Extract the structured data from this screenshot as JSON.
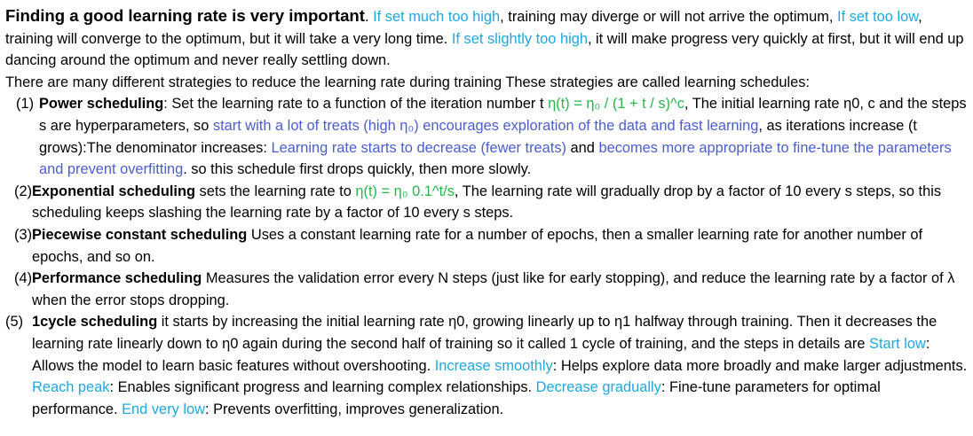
{
  "intro": {
    "title": "Finding a good learning rate is very important",
    "title_end": ". ",
    "high_label": "If set much too high",
    "high_text": ", training may diverge or will not arrive the optimum, ",
    "low_label": "If set too low",
    "low_text": ", training will converge to the optimum, but it will take a very long time. ",
    "slight_label": "If set slightly too high",
    "slight_text": ", it will make progress very quickly at first, but it will end up dancing around the optimum and never really settling down."
  },
  "strategies_line": "There are many different strategies to reduce the learning rate during training These strategies are called learning schedules:",
  "items": [
    {
      "num": "(1)",
      "name": "Power scheduling",
      "t1": ": Set the learning rate to a function of the iteration number t  ",
      "formula": "η(t) = η₀ / (1 + t / s)^c",
      "t2": ", The initial learning rate η0, c and the steps s are hyperparameters, so ",
      "b1": "start with a lot of treats (high η₀) encourages exploration of the data and fast learning",
      "t3": ", as iterations increase (t grows):The denominator increases: ",
      "b2": "Learning rate starts to decrease (fewer treats)",
      "t4": " and ",
      "b3": "becomes more appropriate to fine-tune the parameters and prevent overfitting",
      "t5": ". so this schedule first drops quickly, then more slowly."
    },
    {
      "num": "(2)",
      "name": "Exponential scheduling",
      "t1": " sets the learning rate to ",
      "formula": "η(t) = η₀ 0.1^t/s",
      "t2": ", The learning rate will gradually drop by a factor of 10 every s steps, so this scheduling keeps slashing the learning rate by a factor of 10 every s steps."
    },
    {
      "num": "(3)",
      "name": "Piecewise constant scheduling",
      "t1": " Uses a constant learning rate for a number of epochs, then a smaller learning rate for another number of epochs, and so on."
    },
    {
      "num": "(4)",
      "name": "Performance scheduling",
      "t1": " Measures the validation error every N steps (just like for early stopping), and reduce the learning rate by a factor of λ when the error stops dropping."
    },
    {
      "num": "(5)",
      "name": "1cycle scheduling",
      "t1": " it starts by increasing the initial learning rate η0, growing linearly up to η1 halfway through training. Then it decreases the learning rate linearly down to η0 again during the second half of training so it called 1 cycle of training, and the steps in details are ",
      "s1": "Start low",
      "d1": ": Allows the model to learn basic features without overshooting. ",
      "s2": "Increase smoothly",
      "d2": ": Helps explore data more broadly and make larger adjustments. ",
      "s3": "Reach peak",
      "d3": ": Enables significant progress and learning complex relationships. ",
      "s4": "Decrease gradually",
      "d4": ": Fine-tune parameters for optimal performance. ",
      "s5": "End very low",
      "d5": ": Prevents overfitting, improves generalization."
    }
  ],
  "colors": {
    "cyan": "#1ea8e0",
    "blue": "#4a5ed0",
    "green": "#22b84a",
    "text": "#000000"
  }
}
